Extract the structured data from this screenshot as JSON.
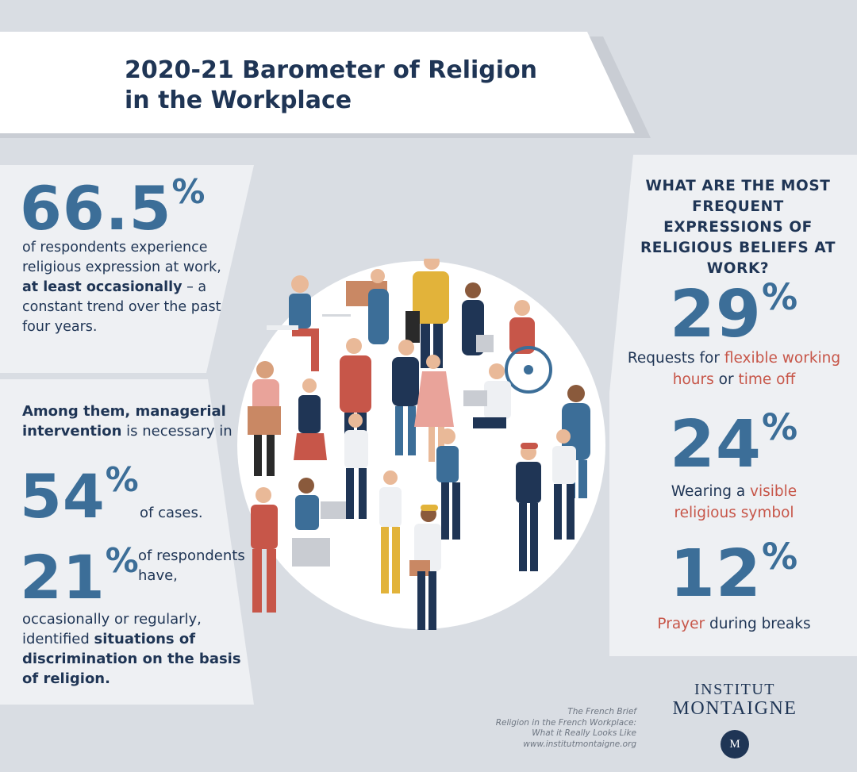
{
  "title": {
    "line1": "2020-21 Barometer of Religion",
    "line2": "in the Workplace"
  },
  "stat_expression": {
    "value": "66.5",
    "unit": "%",
    "text_a": "of respondents experience religious expression at work, ",
    "text_bold": "at least occasionally",
    "text_b": " – a constant trend over the past four years."
  },
  "stat_managerial": {
    "lead_bold": "Among them, managerial intervention",
    "lead_rest": " is necessary in",
    "value": "54",
    "unit": "%",
    "tail": "of cases."
  },
  "stat_discrimination": {
    "value": "21",
    "unit": "%",
    "side_text": "of respondents have,",
    "text_a": "occasionally or regularly, identified ",
    "text_bold": "situations of discrimination on the basis of religion."
  },
  "question": "WHAT ARE THE MOST FREQUENT EXPRESSIONS OF RELIGIOUS BELIEFS AT WORK?",
  "expressions": [
    {
      "value": "29",
      "unit": "%",
      "p1": "Requests for ",
      "r1": "flexible working hours",
      "p2": " or ",
      "r2": "time off"
    },
    {
      "value": "24",
      "unit": "%",
      "p1": "Wearing a ",
      "r1": "visible religious symbol"
    },
    {
      "value": "12",
      "unit": "%",
      "r1": "Prayer",
      "p1": " during breaks"
    }
  ],
  "credit": {
    "line1": "The French Brief",
    "line2": "Religion in the French Workplace:",
    "line3": "What it Really Looks Like",
    "line4": "www.institutmontaigne.org"
  },
  "logo": {
    "line1": "INSTITUT",
    "line2": "MONTAIGNE",
    "seal": "M"
  },
  "colors": {
    "navy": "#1f3555",
    "blue": "#3c6e98",
    "red": "#c75649",
    "background": "#d9dde3",
    "panel": "#eef0f3"
  }
}
